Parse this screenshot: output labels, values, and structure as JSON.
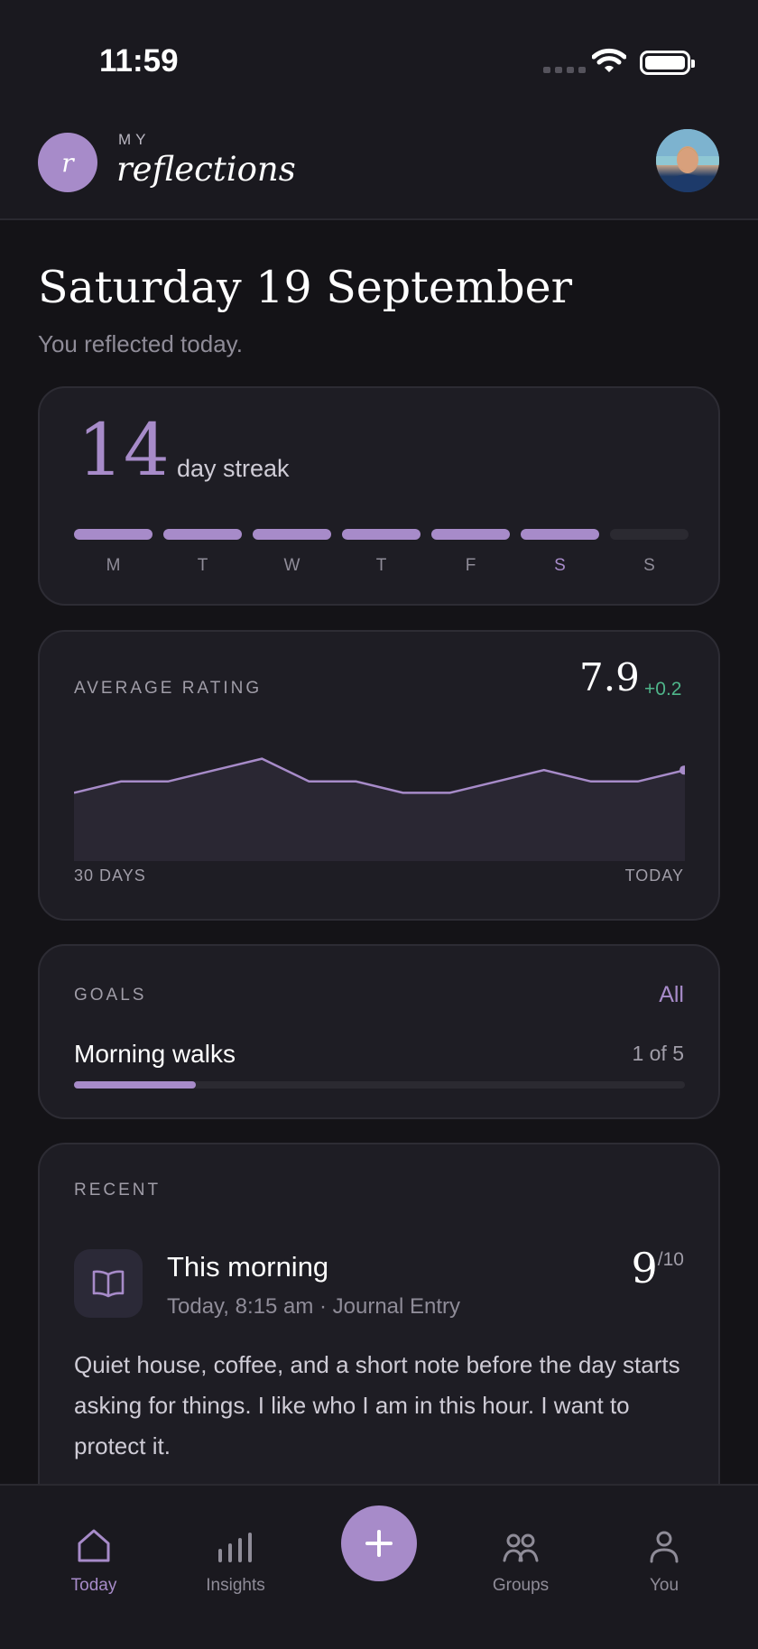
{
  "status_bar": {
    "time": "11:59",
    "icons": [
      "signal-icon",
      "wifi-icon",
      "battery-icon"
    ]
  },
  "header": {
    "logo_letter": "r",
    "brand_small": "MY",
    "brand_big": "reflections",
    "avatar": "profile-avatar"
  },
  "date": {
    "title": "Saturday 19 September",
    "subtitle": "You reflected today."
  },
  "streak": {
    "count": "14",
    "label": "day streak",
    "days": [
      {
        "label": "M",
        "done": true
      },
      {
        "label": "T",
        "done": true
      },
      {
        "label": "W",
        "done": true
      },
      {
        "label": "T",
        "done": true
      },
      {
        "label": "F",
        "done": true
      },
      {
        "label": "S",
        "done": true,
        "today": true
      },
      {
        "label": "S",
        "done": false
      }
    ]
  },
  "rating": {
    "title": "AVERAGE RATING",
    "value": "7.9",
    "change": "+0.2",
    "start_label": "30 DAYS",
    "end_label": "TODAY"
  },
  "chart_data": {
    "type": "area",
    "x": [
      1,
      2,
      3,
      4,
      5,
      6,
      7,
      8,
      9,
      10,
      11,
      12,
      13,
      14
    ],
    "values": [
      7.6,
      7.7,
      7.7,
      7.8,
      7.9,
      7.7,
      7.7,
      7.6,
      7.6,
      7.7,
      7.8,
      7.7,
      7.7,
      7.8
    ],
    "ylim": [
      7.0,
      8.0
    ],
    "xlabel": "",
    "ylabel": "",
    "grid": false,
    "color": "#A78BC9"
  },
  "goals": {
    "title": "GOALS",
    "all_label": "All",
    "items": [
      {
        "name": "Morning walks",
        "progress_text": "1 of 5",
        "progress": 0.2
      }
    ]
  },
  "recent": {
    "title": "RECENT",
    "entries": [
      {
        "icon": "book-icon",
        "title": "This morning",
        "meta": "Today, 8:15 am · Journal Entry",
        "score": "9",
        "score_max": "/10",
        "text": "Quiet house, coffee, and a short note before the day starts asking for things. I like who I am in this hour. I want to protect it."
      }
    ]
  },
  "tabbar": {
    "tabs": [
      {
        "label": "Today",
        "icon": "home-icon",
        "active": true
      },
      {
        "label": "Insights",
        "icon": "bar-chart-icon"
      },
      {
        "label": "Groups",
        "icon": "groups-icon"
      },
      {
        "label": "You",
        "icon": "user-icon"
      }
    ],
    "fab_icon": "plus-icon"
  },
  "colors": {
    "accent": "#A78BC9",
    "positive": "#4FB58A",
    "background": "#141317",
    "card": "#1E1D24"
  }
}
